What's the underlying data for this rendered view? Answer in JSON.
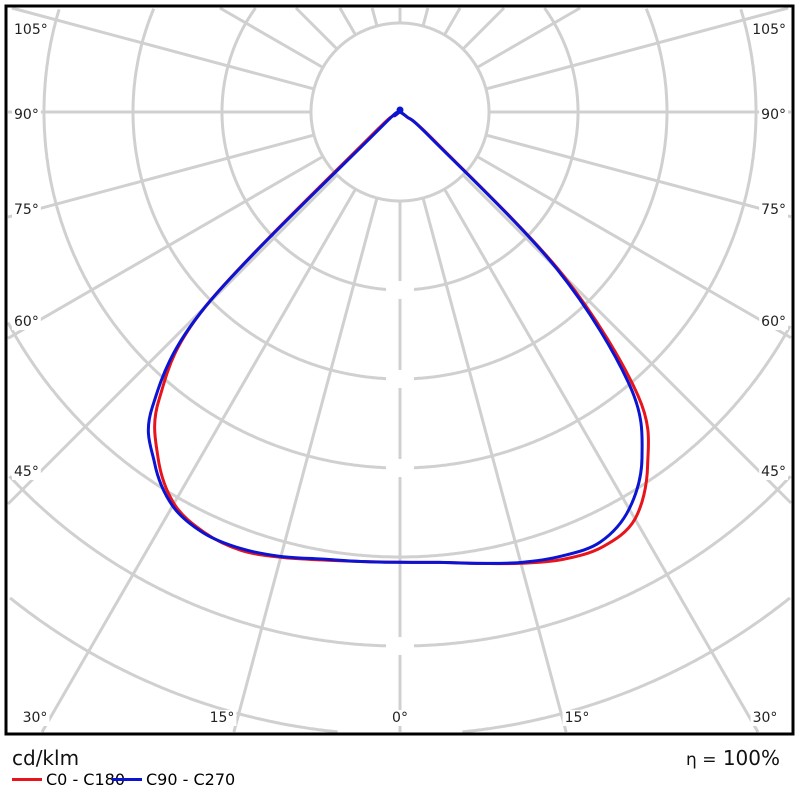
{
  "chart_data": {
    "type": "polar",
    "unit_label": "cd/klm",
    "efficiency_symbol": "η =",
    "efficiency_value": "100%",
    "angle_labels": {
      "bottom": [
        "30°",
        "15°",
        "0°",
        "15°",
        "30°"
      ],
      "left": [
        "45°",
        "60°",
        "75°",
        "90°",
        "105°"
      ],
      "right": [
        "45°",
        "60°",
        "75°",
        "90°",
        "105°"
      ]
    },
    "angle_grid_step_deg": 15,
    "radial_grid": [
      100,
      200,
      300,
      400,
      500,
      600,
      700
    ],
    "grid": true,
    "legend_placement": "bottom-left",
    "angles_deg": [
      0,
      5,
      10,
      15,
      20,
      25,
      30,
      35,
      40,
      45,
      50,
      55,
      60,
      65,
      70,
      75,
      80,
      85,
      90
    ],
    "series": [
      {
        "name": "C0 - C180",
        "color": "#e8141b",
        "right_half": [
          506,
          508,
          515,
          525,
          535,
          539,
          528,
          485,
          416,
          258,
          51,
          9,
          0,
          0,
          0,
          0,
          0,
          0,
          0
        ],
        "left_half": [
          506,
          507,
          511,
          518,
          524,
          521,
          508,
          474,
          421,
          309,
          45,
          6,
          0,
          0,
          0,
          0,
          0,
          0,
          0
        ]
      },
      {
        "name": "C90 - C270",
        "color": "#0a14d2",
        "right_half": [
          506,
          508,
          515,
          524,
          531,
          533,
          515,
          474,
          402,
          249,
          45,
          9,
          0,
          0,
          0,
          0,
          0,
          0,
          0
        ],
        "left_half": [
          506,
          507,
          510,
          517,
          522,
          522,
          511,
          481,
          433,
          309,
          34,
          6,
          0,
          0,
          0,
          0,
          0,
          0,
          0
        ]
      }
    ]
  }
}
